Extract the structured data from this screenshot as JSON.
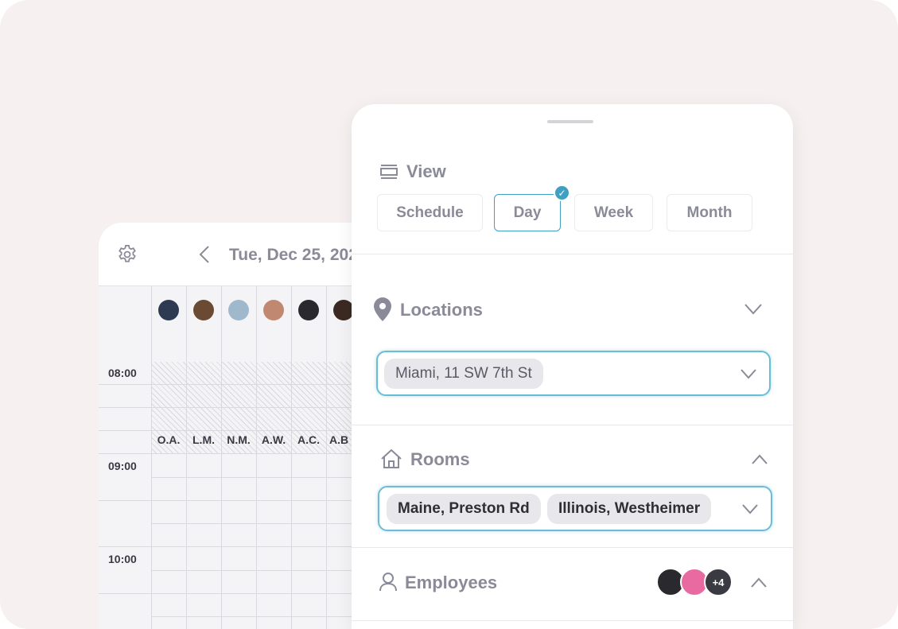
{
  "calendar": {
    "date": "Tue, Dec 25, 202",
    "times": [
      "08:00",
      "09:00",
      "10:00"
    ],
    "employees": [
      {
        "initials": "O.A.",
        "color": "#2d3a52"
      },
      {
        "initials": "L.M.",
        "color": "#6b4a34"
      },
      {
        "initials": "N.M.",
        "color": "#9fb8cc"
      },
      {
        "initials": "A.W.",
        "color": "#c08870"
      },
      {
        "initials": "A.C.",
        "color": "#2a2a2e"
      },
      {
        "initials": "A.B",
        "color": "#3a2a22"
      }
    ]
  },
  "panel": {
    "view": {
      "title": "View",
      "options": [
        "Schedule",
        "Day",
        "Week",
        "Month"
      ],
      "selected": "Day"
    },
    "locations": {
      "title": "Locations",
      "chips": [
        "Miami, 11 SW 7th St"
      ]
    },
    "rooms": {
      "title": "Rooms",
      "chips": [
        "Maine, Preston Rd",
        "Illinois, Westheimer"
      ]
    },
    "employees": {
      "title": "Employees",
      "more_count": "+4"
    }
  },
  "colors": {
    "accent": "#3fa0c2",
    "muted_text": "#8a8a98",
    "background": "#f6f1f0"
  }
}
